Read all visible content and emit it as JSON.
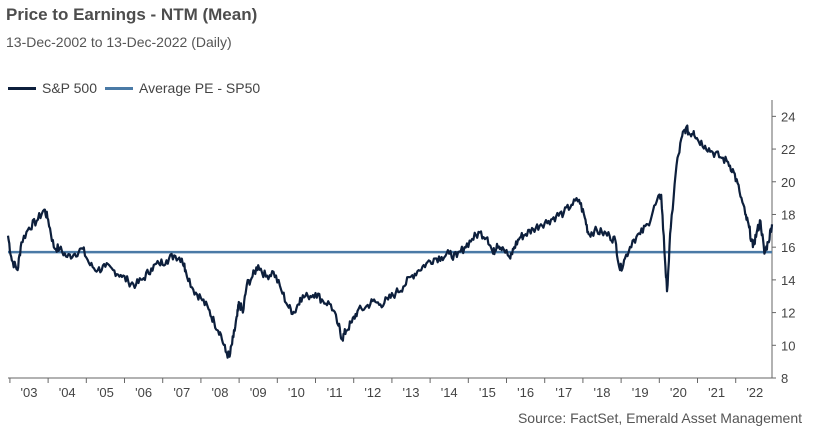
{
  "title": "Price to Earnings - NTM (Mean)",
  "subtitle": "13-Dec-2002 to 13-Dec-2022 (Daily)",
  "legend": [
    {
      "label": "S&P 500",
      "color": "#0d1f3c"
    },
    {
      "label": "Average PE - SP50",
      "color": "#4a7aa6"
    }
  ],
  "source": "Source:  FactSet, Emerald Asset Management",
  "chart_data": {
    "type": "line",
    "title": "Price to Earnings - NTM (Mean)",
    "xlabel": "",
    "ylabel": "",
    "x_range": [
      2002.95,
      2022.95
    ],
    "ylim": [
      8,
      25
    ],
    "y_ticks": [
      8,
      10,
      12,
      14,
      16,
      18,
      20,
      22,
      24
    ],
    "x_ticks": [
      {
        "label": "'03",
        "x": 2003.5
      },
      {
        "label": "'04",
        "x": 2004.5
      },
      {
        "label": "'05",
        "x": 2005.5
      },
      {
        "label": "'06",
        "x": 2006.5
      },
      {
        "label": "'07",
        "x": 2007.5
      },
      {
        "label": "'08",
        "x": 2008.5
      },
      {
        "label": "'09",
        "x": 2009.5
      },
      {
        "label": "'10",
        "x": 2010.5
      },
      {
        "label": "'11",
        "x": 2011.5
      },
      {
        "label": "'12",
        "x": 2012.5
      },
      {
        "label": "'13",
        "x": 2013.5
      },
      {
        "label": "'14",
        "x": 2014.5
      },
      {
        "label": "'15",
        "x": 2015.5
      },
      {
        "label": "'16",
        "x": 2016.5
      },
      {
        "label": "'17",
        "x": 2017.5
      },
      {
        "label": "'18",
        "x": 2018.5
      },
      {
        "label": "'19",
        "x": 2019.5
      },
      {
        "label": "'20",
        "x": 2020.5
      },
      {
        "label": "'21",
        "x": 2021.5
      },
      {
        "label": "'22",
        "x": 2022.5
      }
    ],
    "series": [
      {
        "name": "S&P 500",
        "color": "#0d1f3c",
        "x": [
          2002.95,
          2003.05,
          2003.2,
          2003.3,
          2003.5,
          2003.7,
          2003.9,
          2004.0,
          2004.15,
          2004.3,
          2004.5,
          2004.7,
          2004.9,
          2005.1,
          2005.3,
          2005.5,
          2005.7,
          2005.9,
          2006.1,
          2006.3,
          2006.5,
          2006.7,
          2006.9,
          2007.1,
          2007.3,
          2007.5,
          2007.6,
          2007.8,
          2008.0,
          2008.2,
          2008.35,
          2008.5,
          2008.65,
          2008.75,
          2008.85,
          2008.95,
          2009.0,
          2009.1,
          2009.2,
          2009.35,
          2009.5,
          2009.7,
          2009.9,
          2010.1,
          2010.3,
          2010.45,
          2010.6,
          2010.8,
          2011.0,
          2011.2,
          2011.4,
          2011.6,
          2011.7,
          2011.8,
          2011.95,
          2012.1,
          2012.3,
          2012.5,
          2012.7,
          2012.9,
          2013.1,
          2013.3,
          2013.5,
          2013.7,
          2013.9,
          2014.1,
          2014.3,
          2014.5,
          2014.7,
          2014.9,
          2015.1,
          2015.3,
          2015.5,
          2015.65,
          2015.75,
          2015.9,
          2016.1,
          2016.2,
          2016.35,
          2016.5,
          2016.7,
          2016.9,
          2017.1,
          2017.3,
          2017.5,
          2017.7,
          2017.9,
          2018.05,
          2018.15,
          2018.3,
          2018.5,
          2018.7,
          2018.85,
          2018.97,
          2019.1,
          2019.3,
          2019.5,
          2019.7,
          2019.9,
          2020.05,
          2020.15,
          2020.2,
          2020.3,
          2020.45,
          2020.6,
          2020.7,
          2020.8,
          2020.9,
          2021.0,
          2021.2,
          2021.4,
          2021.6,
          2021.8,
          2021.95,
          2022.1,
          2022.25,
          2022.35,
          2022.45,
          2022.55,
          2022.65,
          2022.75,
          2022.85,
          2022.95
        ],
        "y": [
          16.7,
          15.2,
          14.6,
          16.3,
          17.2,
          17.6,
          18.3,
          17.7,
          16.0,
          15.9,
          15.4,
          15.6,
          15.9,
          14.9,
          14.6,
          14.8,
          14.6,
          14.3,
          13.9,
          13.7,
          14.1,
          14.7,
          15.0,
          15.2,
          15.5,
          15.3,
          14.6,
          13.4,
          12.9,
          12.2,
          11.4,
          10.8,
          9.6,
          9.3,
          10.5,
          11.8,
          12.6,
          12.0,
          13.7,
          14.2,
          14.9,
          14.2,
          14.5,
          13.4,
          12.3,
          12.0,
          12.9,
          13.0,
          13.2,
          12.7,
          12.5,
          11.2,
          10.4,
          10.9,
          11.4,
          12.1,
          12.3,
          12.7,
          12.5,
          12.8,
          13.2,
          13.6,
          14.2,
          14.6,
          15.0,
          15.3,
          15.4,
          15.6,
          15.4,
          16.0,
          16.5,
          16.9,
          16.6,
          15.6,
          16.2,
          16.0,
          15.3,
          16.0,
          16.6,
          16.8,
          17.1,
          17.4,
          17.6,
          17.9,
          18.1,
          18.6,
          18.9,
          17.8,
          16.8,
          17.0,
          16.9,
          16.7,
          16.4,
          14.6,
          15.3,
          16.4,
          16.8,
          17.4,
          18.6,
          19.2,
          15.2,
          13.3,
          17.2,
          21.0,
          22.8,
          23.3,
          22.9,
          23.1,
          22.6,
          22.2,
          21.8,
          21.5,
          21.2,
          20.6,
          19.4,
          18.0,
          17.2,
          16.0,
          16.9,
          17.6,
          15.6,
          16.3,
          17.4
        ]
      },
      {
        "name": "Average PE - SP50",
        "color": "#4a7aa6",
        "x": [
          2002.95,
          2022.95
        ],
        "y": [
          15.7,
          15.7
        ]
      }
    ]
  }
}
